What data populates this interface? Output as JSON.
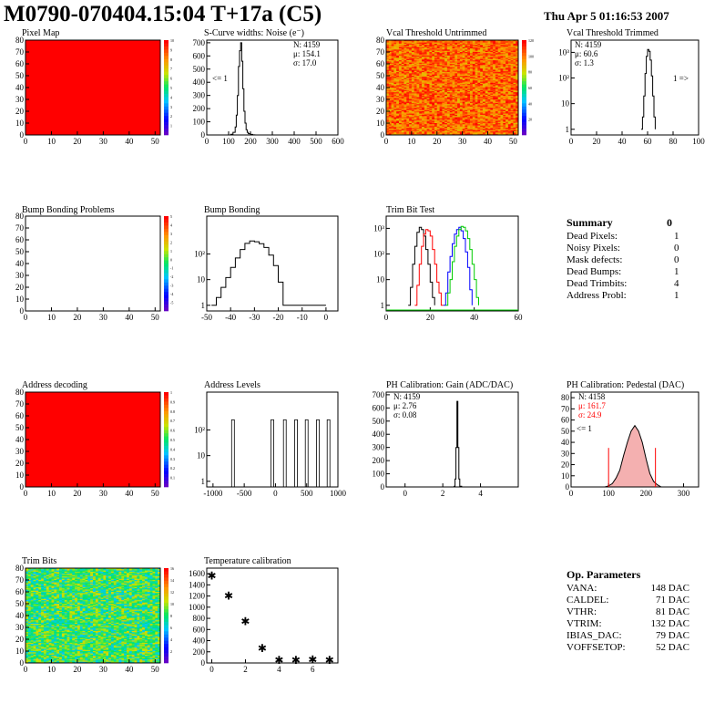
{
  "header": {
    "title": "M0790-070404.15:04 T+17a (C5)",
    "timestamp": "Thu Apr  5 01:16:53 2007"
  },
  "colors": {
    "hist_line": "#000000",
    "pedestal_fit": "#ff0000",
    "trim_red": "#ff0000",
    "trim_green": "#00cc00",
    "trim_blue": "#0000ff"
  },
  "summary": {
    "title": "Summary",
    "total": "0",
    "rows": [
      {
        "label": "Dead Pixels:",
        "value": "1"
      },
      {
        "label": "Noisy Pixels:",
        "value": "0"
      },
      {
        "label": "Mask defects:",
        "value": "0"
      },
      {
        "label": "Dead Bumps:",
        "value": "1"
      },
      {
        "label": "Dead Trimbits:",
        "value": "4"
      },
      {
        "label": "Address Probl:",
        "value": "1"
      }
    ]
  },
  "op_params": {
    "title": "Op. Parameters",
    "rows": [
      {
        "label": "VANA:",
        "value": "148 DAC"
      },
      {
        "label": "CALDEL:",
        "value": "71 DAC"
      },
      {
        "label": "VTHR:",
        "value": "81 DAC"
      },
      {
        "label": "VTRIM:",
        "value": "132 DAC"
      },
      {
        "label": "IBIAS_DAC:",
        "value": "79 DAC"
      },
      {
        "label": "VOFFSETOP:",
        "value": "52 DAC"
      }
    ]
  },
  "chart_data": [
    {
      "id": "pixel-map",
      "type": "heatmap",
      "title": "Pixel Map",
      "xlim": [
        0,
        52
      ],
      "ylim": [
        0,
        80
      ],
      "xticks": [
        "0",
        "10",
        "20",
        "30",
        "40",
        "50"
      ],
      "yticks": [
        "0",
        "10",
        "20",
        "30",
        "40",
        "50",
        "60",
        "70",
        "80"
      ],
      "fill": "uniform-red",
      "palette_max": "10",
      "palette_labels": [
        "1",
        "2",
        "3",
        "4",
        "5",
        "6",
        "7",
        "8",
        "9",
        "10"
      ]
    },
    {
      "id": "scurve-noise",
      "type": "line",
      "title": "S-Curve widths: Noise (e⁻)",
      "xlim": [
        0,
        600
      ],
      "ylim": [
        0,
        720
      ],
      "xticks": [
        "0",
        "100",
        "200",
        "300",
        "400",
        "500",
        "600"
      ],
      "yticks": [
        "0",
        "100",
        "200",
        "300",
        "400",
        "500",
        "600",
        "700"
      ],
      "stats": [
        "N: 4159",
        "μ: 154.1",
        "σ: 17.0"
      ],
      "annotation": "<= 1",
      "x": [
        100,
        110,
        120,
        130,
        135,
        140,
        145,
        150,
        155,
        160,
        165,
        170,
        175,
        180,
        185,
        190,
        200,
        210,
        220
      ],
      "y": [
        0,
        5,
        20,
        60,
        150,
        300,
        520,
        640,
        700,
        560,
        350,
        180,
        90,
        40,
        20,
        10,
        4,
        1,
        0
      ]
    },
    {
      "id": "vcal-untrimmed",
      "type": "heatmap",
      "title": "Vcal Threshold Untrimmed",
      "xlim": [
        0,
        52
      ],
      "ylim": [
        0,
        80
      ],
      "xticks": [
        "0",
        "10",
        "20",
        "30",
        "40",
        "50"
      ],
      "yticks": [
        "0",
        "10",
        "20",
        "30",
        "40",
        "50",
        "60",
        "70",
        "80"
      ],
      "fill": "noisy-orange",
      "palette_labels": [
        "20",
        "40",
        "60",
        "80",
        "100",
        "120"
      ]
    },
    {
      "id": "vcal-trimmed",
      "type": "line",
      "log_y": true,
      "title": "Vcal Threshold Trimmed",
      "xlim": [
        0,
        100
      ],
      "xticks": [
        "0",
        "20",
        "40",
        "60",
        "80",
        "100"
      ],
      "yticks": [
        "1",
        "10",
        "10²",
        "10³"
      ],
      "stats": [
        "N: 4159",
        "μ: 60.6",
        "σ:  1.3"
      ],
      "annotation": "1 =>",
      "x": [
        55,
        56,
        57,
        58,
        59,
        60,
        61,
        62,
        63,
        64,
        65,
        66
      ],
      "y": [
        1,
        3,
        20,
        150,
        700,
        1300,
        1100,
        500,
        120,
        20,
        3,
        1
      ]
    },
    {
      "id": "bump-problems",
      "type": "heatmap",
      "title": "Bump Bonding Problems",
      "xlim": [
        0,
        52
      ],
      "ylim": [
        0,
        80
      ],
      "xticks": [
        "0",
        "10",
        "20",
        "30",
        "40",
        "50"
      ],
      "yticks": [
        "0",
        "10",
        "20",
        "30",
        "40",
        "50",
        "60",
        "70",
        "80"
      ],
      "fill": "empty",
      "palette_labels": [
        "-5",
        "-4",
        "-3",
        "-2",
        "-1",
        "0",
        "1",
        "2",
        "3",
        "4",
        "5"
      ]
    },
    {
      "id": "bump-bonding",
      "type": "line",
      "log_y": true,
      "title": "Bump Bonding",
      "xlim": [
        -50,
        5
      ],
      "xticks": [
        "-50",
        "-40",
        "-30",
        "-20",
        "-10",
        "0"
      ],
      "yticks": [
        "1",
        "10",
        "10²"
      ],
      "x": [
        -48,
        -46,
        -44,
        -42,
        -40,
        -38,
        -36,
        -34,
        -32,
        -30,
        -28,
        -26,
        -24,
        -22,
        -20,
        -18,
        0
      ],
      "y": [
        1,
        2,
        5,
        12,
        30,
        70,
        150,
        260,
        320,
        300,
        250,
        180,
        90,
        35,
        8,
        1,
        1
      ]
    },
    {
      "id": "trim-bit-test",
      "type": "line",
      "log_y": true,
      "title": "Trim Bit Test",
      "xlim": [
        0,
        60
      ],
      "xticks": [
        "0",
        "20",
        "40",
        "60"
      ],
      "yticks": [
        "1",
        "10",
        "10²",
        "10³"
      ],
      "series": [
        {
          "color": "black",
          "x": [
            10,
            11,
            12,
            13,
            14,
            15,
            16,
            17,
            18,
            19,
            20,
            21,
            22
          ],
          "y": [
            1,
            5,
            40,
            200,
            700,
            1100,
            900,
            500,
            150,
            40,
            8,
            2,
            1
          ]
        },
        {
          "color": "red",
          "x": [
            13,
            14,
            15,
            16,
            17,
            18,
            19,
            20,
            21,
            22,
            23,
            24,
            25,
            26
          ],
          "y": [
            1,
            6,
            40,
            200,
            600,
            900,
            800,
            500,
            150,
            40,
            8,
            3,
            1,
            1
          ]
        },
        {
          "color": "blue",
          "x": [
            26,
            27,
            28,
            29,
            30,
            31,
            32,
            33,
            34,
            35,
            36,
            37,
            38,
            39
          ],
          "y": [
            1,
            3,
            20,
            80,
            250,
            600,
            900,
            1100,
            800,
            400,
            120,
            30,
            4,
            1
          ]
        },
        {
          "color": "green",
          "x": [
            27,
            28,
            29,
            30,
            31,
            32,
            33,
            34,
            35,
            36,
            37,
            38,
            39,
            40,
            41,
            42
          ],
          "y": [
            1,
            3,
            10,
            50,
            200,
            500,
            900,
            1200,
            1100,
            800,
            400,
            150,
            40,
            10,
            2,
            1
          ]
        }
      ]
    },
    {
      "id": "address-decoding",
      "type": "heatmap",
      "title": "Address decoding",
      "xlim": [
        0,
        52
      ],
      "ylim": [
        0,
        80
      ],
      "xticks": [
        "0",
        "10",
        "20",
        "30",
        "40",
        "50"
      ],
      "yticks": [
        "0",
        "10",
        "20",
        "30",
        "40",
        "50",
        "60",
        "70",
        "80"
      ],
      "fill": "uniform-red",
      "palette_labels": [
        "0.1",
        "0.2",
        "0.3",
        "0.4",
        "0.5",
        "0.6",
        "0.7",
        "0.8",
        "0.9",
        "1"
      ]
    },
    {
      "id": "address-levels",
      "type": "line",
      "log_y": true,
      "title": "Address Levels",
      "xlim": [
        -1100,
        1000
      ],
      "xticks": [
        "-1000",
        "-500",
        "0",
        "500",
        "1000"
      ],
      "yticks": [
        "1",
        "10",
        "10²"
      ],
      "peaks": [
        -680,
        -50,
        150,
        330,
        500,
        680,
        850
      ]
    },
    {
      "id": "ph-gain",
      "type": "line",
      "title": "PH Calibration: Gain (ADC/DAC)",
      "xlim": [
        -1,
        6
      ],
      "ylim": [
        0,
        720
      ],
      "xticks": [
        "0",
        "2",
        "4"
      ],
      "yticks": [
        "0",
        "100",
        "200",
        "300",
        "400",
        "500",
        "600",
        "700"
      ],
      "stats": [
        "N: 4159",
        "μ: 2.76",
        "σ: 0.08"
      ],
      "x": [
        2.5,
        2.6,
        2.65,
        2.7,
        2.75,
        2.8,
        2.85,
        2.9,
        3.0
      ],
      "y": [
        0,
        5,
        60,
        300,
        650,
        300,
        60,
        5,
        0
      ]
    },
    {
      "id": "ph-pedestal",
      "type": "area",
      "title": "PH Calibration: Pedestal (DAC)",
      "xlim": [
        0,
        340
      ],
      "ylim": [
        0,
        85
      ],
      "xticks": [
        "0",
        "100",
        "200",
        "300"
      ],
      "yticks": [
        "0",
        "10",
        "20",
        "30",
        "40",
        "50",
        "60",
        "70",
        "80"
      ],
      "stats": [
        "N: 4158",
        "μ: 161.7",
        "σ: 24.9"
      ],
      "annotation": "<= 1",
      "x": [
        90,
        100,
        110,
        120,
        130,
        140,
        150,
        160,
        170,
        180,
        190,
        200,
        210,
        220,
        230,
        240
      ],
      "y": [
        0,
        1,
        3,
        8,
        15,
        28,
        40,
        50,
        55,
        50,
        40,
        25,
        12,
        5,
        2,
        0
      ],
      "cut_lines_x": [
        100,
        225
      ]
    },
    {
      "id": "trim-bits",
      "type": "heatmap",
      "title": "Trim Bits",
      "xlim": [
        0,
        52
      ],
      "ylim": [
        0,
        80
      ],
      "xticks": [
        "0",
        "10",
        "20",
        "30",
        "40",
        "50"
      ],
      "yticks": [
        "0",
        "10",
        "20",
        "30",
        "40",
        "50",
        "60",
        "70",
        "80"
      ],
      "fill": "noisy-green",
      "palette_labels": [
        "2",
        "4",
        "6",
        "8",
        "10",
        "12",
        "14",
        "16"
      ]
    },
    {
      "id": "temp-calib",
      "type": "scatter",
      "title": "Temperature calibration",
      "xlim": [
        -0.3,
        7.5
      ],
      "ylim": [
        0,
        1700
      ],
      "xticks": [
        "0",
        "2",
        "4",
        "6"
      ],
      "yticks": [
        "0",
        "200",
        "400",
        "600",
        "800",
        "1000",
        "1200",
        "1400",
        "1600"
      ],
      "x": [
        0,
        1,
        2,
        3,
        4,
        5,
        6,
        7
      ],
      "y": [
        1560,
        1200,
        740,
        260,
        50,
        50,
        60,
        50
      ]
    }
  ]
}
